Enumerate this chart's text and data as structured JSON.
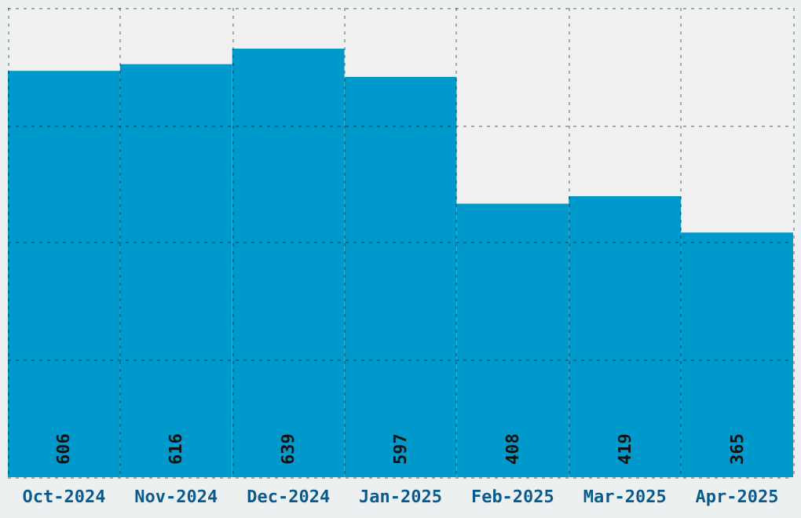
{
  "chart_data": {
    "type": "bar",
    "categories": [
      "Oct-2024",
      "Nov-2024",
      "Dec-2024",
      "Jan-2025",
      "Feb-2025",
      "Mar-2025",
      "Apr-2025"
    ],
    "values": [
      606,
      616,
      639,
      597,
      408,
      419,
      365
    ],
    "color": "#0099cc",
    "ylim": [
      0,
      700
    ],
    "yticks": [
      {
        "value": 0,
        "label": null
      },
      {
        "value": 175,
        "label": null
      },
      {
        "value": 350,
        "label": null
      },
      {
        "value": 525,
        "label": null
      },
      {
        "value": 700,
        "label": null
      }
    ],
    "tick_labels": "x",
    "grid": true,
    "data_labels": true
  }
}
